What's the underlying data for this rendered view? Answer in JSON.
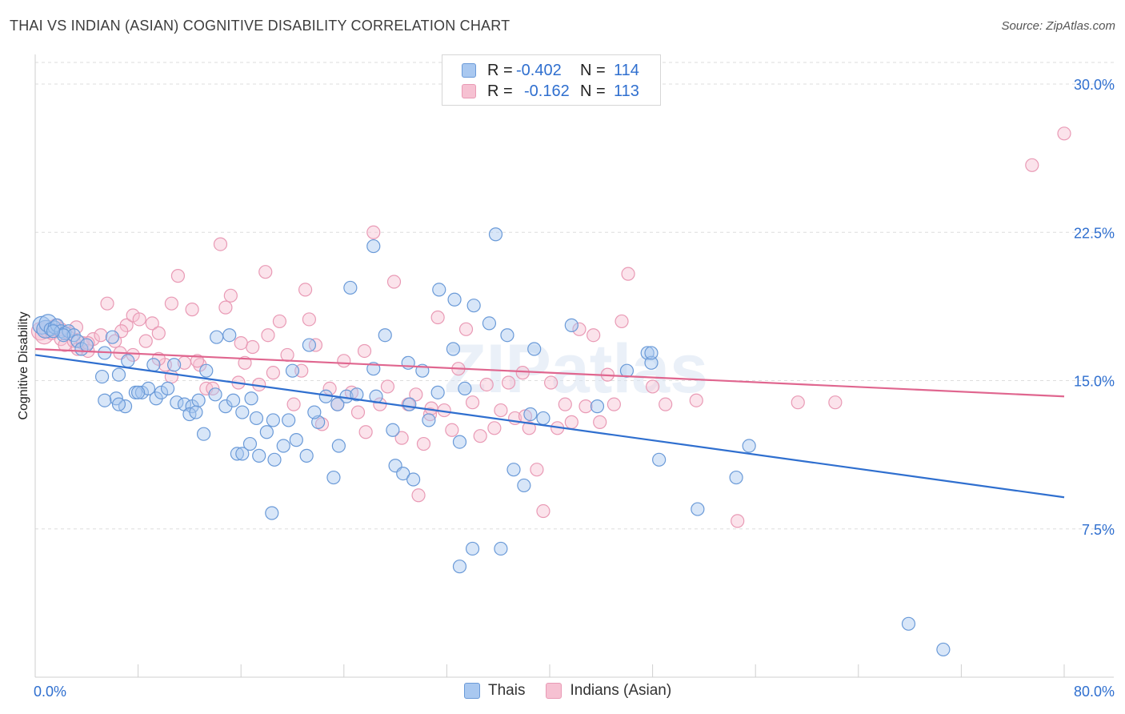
{
  "header": {
    "title": "THAI VS INDIAN (ASIAN) COGNITIVE DISABILITY CORRELATION CHART",
    "source": "Source: ZipAtlas.com"
  },
  "legend": {
    "rows": [
      {
        "r_label": "R =",
        "r_value": "-0.402",
        "n_label": "N =",
        "n_value": "114"
      },
      {
        "r_label": "R =",
        "r_value": "-0.162",
        "n_label": "N =",
        "n_value": "113"
      }
    ]
  },
  "colors": {
    "blue_fill": "#a9c8f0",
    "blue_stroke": "#6a9ad8",
    "blue_line": "#2f6fcf",
    "pink_fill": "#f6c1d2",
    "pink_stroke": "#e99ab5",
    "pink_line": "#e0668f",
    "axis_text": "#2f6fcf",
    "grid": "#dedede"
  },
  "chart_data": {
    "type": "scatter",
    "title": "THAI VS INDIAN (ASIAN) COGNITIVE DISABILITY CORRELATION CHART",
    "xlabel": "",
    "ylabel": "Cognitive Disability",
    "xlim": [
      0,
      80
    ],
    "ylim": [
      0,
      31.5
    ],
    "x_tick_labels": [
      "0.0%",
      "80.0%"
    ],
    "y_ticks": [
      7.5,
      15.0,
      22.5,
      30.0
    ],
    "y_tick_labels": [
      "7.5%",
      "15.0%",
      "22.5%",
      "30.0%"
    ],
    "watermark": "ZIPatlas",
    "series": [
      {
        "name": "Thais",
        "r": -0.402,
        "n": 114,
        "trend": {
          "x0": 0,
          "y0": 16.3,
          "x1": 80,
          "y1": 9.1
        },
        "points": [
          [
            0.5,
            17.8
          ],
          [
            0.8,
            17.6
          ],
          [
            1.0,
            17.9
          ],
          [
            1.2,
            17.6
          ],
          [
            1.5,
            17.7
          ],
          [
            1.7,
            17.8
          ],
          [
            2.0,
            17.5
          ],
          [
            2.3,
            17.4
          ],
          [
            2.6,
            17.5
          ],
          [
            3.0,
            17.3
          ],
          [
            3.3,
            17.0
          ],
          [
            3.6,
            16.6
          ],
          [
            4.0,
            16.8
          ],
          [
            2.2,
            17.3
          ],
          [
            1.4,
            17.5
          ],
          [
            5.4,
            16.4
          ],
          [
            6.0,
            17.2
          ],
          [
            6.5,
            15.3
          ],
          [
            5.2,
            15.2
          ],
          [
            6.3,
            14.1
          ],
          [
            7.2,
            16.0
          ],
          [
            7.0,
            13.7
          ],
          [
            6.5,
            13.8
          ],
          [
            7.8,
            14.4
          ],
          [
            8.3,
            14.4
          ],
          [
            8.8,
            14.6
          ],
          [
            9.4,
            14.1
          ],
          [
            9.8,
            14.4
          ],
          [
            10.3,
            14.6
          ],
          [
            11.0,
            13.9
          ],
          [
            11.6,
            13.8
          ],
          [
            12.2,
            13.7
          ],
          [
            12.7,
            14.0
          ],
          [
            13.3,
            15.5
          ],
          [
            14.0,
            14.3
          ],
          [
            14.8,
            13.7
          ],
          [
            15.4,
            14.0
          ],
          [
            16.1,
            13.4
          ],
          [
            16.8,
            14.1
          ],
          [
            17.2,
            13.1
          ],
          [
            18.0,
            12.4
          ],
          [
            18.5,
            13.0
          ],
          [
            12.0,
            13.3
          ],
          [
            12.5,
            13.4
          ],
          [
            13.1,
            12.3
          ],
          [
            15.7,
            11.3
          ],
          [
            16.1,
            11.3
          ],
          [
            16.7,
            11.8
          ],
          [
            17.4,
            11.2
          ],
          [
            18.6,
            11.0
          ],
          [
            19.7,
            13.0
          ],
          [
            20.3,
            12.0
          ],
          [
            19.3,
            11.7
          ],
          [
            21.1,
            11.2
          ],
          [
            22.0,
            12.9
          ],
          [
            22.6,
            14.2
          ],
          [
            23.2,
            10.1
          ],
          [
            23.6,
            11.7
          ],
          [
            24.2,
            14.2
          ],
          [
            23.5,
            13.8
          ],
          [
            25.0,
            14.3
          ],
          [
            26.5,
            14.2
          ],
          [
            27.8,
            12.5
          ],
          [
            28.0,
            10.7
          ],
          [
            28.6,
            10.3
          ],
          [
            29.4,
            10.0
          ],
          [
            30.6,
            13.0
          ],
          [
            31.3,
            14.4
          ],
          [
            32.5,
            16.6
          ],
          [
            33.0,
            11.9
          ],
          [
            33.4,
            14.6
          ],
          [
            29.1,
            13.8
          ],
          [
            24.5,
            19.7
          ],
          [
            26.3,
            21.8
          ],
          [
            27.2,
            17.3
          ],
          [
            31.4,
            19.6
          ],
          [
            32.6,
            19.1
          ],
          [
            34.1,
            18.8
          ],
          [
            35.3,
            17.9
          ],
          [
            35.8,
            22.4
          ],
          [
            36.2,
            6.5
          ],
          [
            36.7,
            17.3
          ],
          [
            37.2,
            10.5
          ],
          [
            38.0,
            9.7
          ],
          [
            38.5,
            13.3
          ],
          [
            38.8,
            16.6
          ],
          [
            39.5,
            13.1
          ],
          [
            41.7,
            17.8
          ],
          [
            43.7,
            13.7
          ],
          [
            46.0,
            15.5
          ],
          [
            47.6,
            16.4
          ],
          [
            47.9,
            15.9
          ],
          [
            47.9,
            16.4
          ],
          [
            48.5,
            11.0
          ],
          [
            51.5,
            8.5
          ],
          [
            54.5,
            10.1
          ],
          [
            55.5,
            11.7
          ],
          [
            67.9,
            2.7
          ],
          [
            70.6,
            1.4
          ],
          [
            34.0,
            6.5
          ],
          [
            33.0,
            5.6
          ],
          [
            18.4,
            8.3
          ],
          [
            20.0,
            15.5
          ],
          [
            21.3,
            16.8
          ],
          [
            21.7,
            13.4
          ],
          [
            10.8,
            15.8
          ],
          [
            8.0,
            14.4
          ],
          [
            5.4,
            14.0
          ],
          [
            9.2,
            15.8
          ],
          [
            14.1,
            17.2
          ],
          [
            15.1,
            17.3
          ],
          [
            29.0,
            15.9
          ],
          [
            30.1,
            15.5
          ],
          [
            26.3,
            15.6
          ]
        ]
      },
      {
        "name": "Indians (Asian)",
        "r": -0.162,
        "n": 113,
        "trend": {
          "x0": 0,
          "y0": 16.6,
          "x1": 80,
          "y1": 14.2
        },
        "points": [
          [
            0.4,
            17.5
          ],
          [
            0.7,
            17.3
          ],
          [
            1.0,
            17.6
          ],
          [
            1.3,
            17.4
          ],
          [
            1.6,
            17.8
          ],
          [
            2.0,
            17.1
          ],
          [
            2.3,
            16.8
          ],
          [
            2.6,
            17.4
          ],
          [
            3.0,
            17.0
          ],
          [
            3.3,
            16.6
          ],
          [
            3.7,
            16.9
          ],
          [
            4.1,
            16.5
          ],
          [
            4.5,
            17.1
          ],
          [
            5.1,
            17.3
          ],
          [
            5.6,
            18.9
          ],
          [
            6.2,
            17.0
          ],
          [
            6.6,
            16.4
          ],
          [
            7.1,
            17.8
          ],
          [
            7.6,
            18.3
          ],
          [
            8.1,
            18.1
          ],
          [
            8.6,
            17.0
          ],
          [
            9.1,
            17.9
          ],
          [
            9.6,
            17.4
          ],
          [
            10.1,
            15.8
          ],
          [
            10.6,
            18.9
          ],
          [
            11.1,
            20.3
          ],
          [
            11.6,
            15.9
          ],
          [
            12.2,
            18.6
          ],
          [
            12.8,
            15.8
          ],
          [
            13.3,
            14.6
          ],
          [
            13.8,
            14.6
          ],
          [
            14.4,
            21.9
          ],
          [
            14.8,
            18.7
          ],
          [
            15.2,
            19.3
          ],
          [
            15.8,
            14.9
          ],
          [
            16.3,
            15.9
          ],
          [
            16.9,
            16.7
          ],
          [
            17.4,
            14.8
          ],
          [
            17.9,
            20.5
          ],
          [
            18.5,
            15.4
          ],
          [
            19.0,
            18.0
          ],
          [
            19.6,
            16.3
          ],
          [
            20.1,
            13.8
          ],
          [
            20.7,
            15.5
          ],
          [
            21.3,
            18.1
          ],
          [
            21.8,
            16.8
          ],
          [
            22.3,
            12.8
          ],
          [
            22.9,
            14.6
          ],
          [
            23.5,
            13.8
          ],
          [
            24.0,
            16.0
          ],
          [
            24.6,
            14.4
          ],
          [
            25.1,
            13.4
          ],
          [
            25.7,
            12.4
          ],
          [
            26.3,
            22.5
          ],
          [
            26.8,
            13.8
          ],
          [
            27.4,
            14.7
          ],
          [
            27.9,
            20.0
          ],
          [
            28.5,
            12.1
          ],
          [
            29.0,
            13.8
          ],
          [
            29.6,
            14.3
          ],
          [
            30.2,
            11.8
          ],
          [
            30.7,
            13.3
          ],
          [
            31.3,
            18.2
          ],
          [
            31.8,
            13.5
          ],
          [
            32.4,
            12.5
          ],
          [
            32.9,
            15.6
          ],
          [
            33.5,
            17.6
          ],
          [
            34.0,
            13.9
          ],
          [
            34.6,
            12.2
          ],
          [
            35.1,
            14.8
          ],
          [
            35.7,
            12.6
          ],
          [
            36.2,
            13.5
          ],
          [
            36.8,
            14.9
          ],
          [
            37.3,
            13.1
          ],
          [
            37.9,
            15.4
          ],
          [
            38.4,
            12.6
          ],
          [
            39.0,
            10.5
          ],
          [
            39.5,
            8.4
          ],
          [
            40.1,
            14.9
          ],
          [
            40.6,
            12.6
          ],
          [
            41.2,
            13.8
          ],
          [
            41.7,
            12.9
          ],
          [
            42.3,
            17.6
          ],
          [
            42.8,
            13.7
          ],
          [
            43.4,
            17.3
          ],
          [
            43.9,
            12.9
          ],
          [
            44.5,
            15.3
          ],
          [
            45.0,
            13.8
          ],
          [
            45.6,
            18.0
          ],
          [
            46.1,
            20.4
          ],
          [
            38.1,
            13.2
          ],
          [
            29.8,
            9.2
          ],
          [
            21.0,
            19.6
          ],
          [
            18.1,
            17.3
          ],
          [
            9.6,
            16.1
          ],
          [
            10.6,
            15.2
          ],
          [
            12.6,
            16.0
          ],
          [
            16.0,
            16.9
          ],
          [
            25.6,
            16.5
          ],
          [
            30.8,
            13.6
          ],
          [
            48.0,
            14.7
          ],
          [
            49.0,
            13.8
          ],
          [
            51.4,
            14.0
          ],
          [
            54.6,
            7.9
          ],
          [
            59.3,
            13.9
          ],
          [
            62.2,
            13.9
          ],
          [
            77.5,
            25.9
          ],
          [
            80.0,
            27.5
          ],
          [
            6.7,
            17.5
          ],
          [
            7.6,
            16.3
          ],
          [
            2.0,
            17.6
          ],
          [
            3.2,
            17.7
          ],
          [
            4.1,
            16.9
          ]
        ]
      }
    ]
  },
  "bottom_legend": {
    "items": [
      {
        "label": "Thais"
      },
      {
        "label": "Indians (Asian)"
      }
    ]
  }
}
